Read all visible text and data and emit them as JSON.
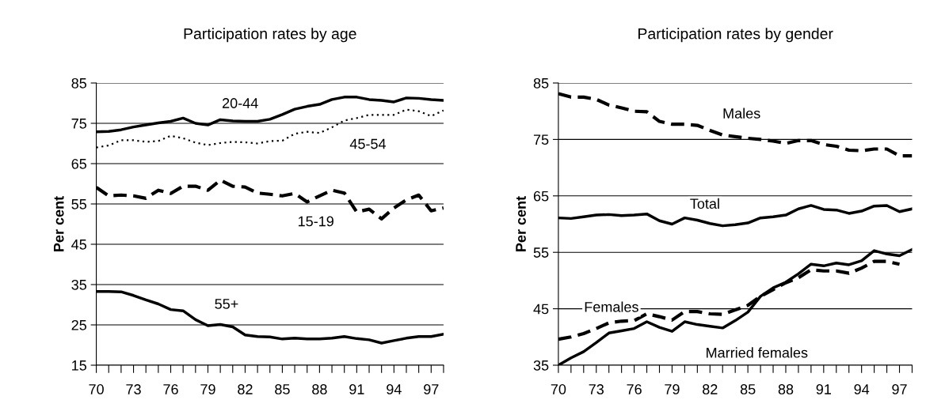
{
  "chart_data": [
    {
      "type": "line",
      "title": "Participation rates by age",
      "ylabel": "Per cent",
      "x": [
        70,
        71,
        72,
        73,
        74,
        75,
        76,
        77,
        78,
        79,
        80,
        81,
        82,
        83,
        84,
        85,
        86,
        87,
        88,
        89,
        90,
        91,
        92,
        93,
        94,
        95,
        96,
        97,
        98
      ],
      "xlim": [
        70,
        98
      ],
      "ylim": [
        15,
        85
      ],
      "yticks": [
        15,
        25,
        35,
        45,
        55,
        65,
        75,
        85
      ],
      "xticks": [
        70,
        {
          "value": 71,
          "label": null
        },
        {
          "value": 72,
          "label": null
        },
        73,
        {
          "value": 74,
          "label": null
        },
        {
          "value": 75,
          "label": null
        },
        76,
        {
          "value": 77,
          "label": null
        },
        {
          "value": 78,
          "label": null
        },
        79,
        {
          "value": 80,
          "label": null
        },
        {
          "value": 81,
          "label": null
        },
        82,
        {
          "value": 83,
          "label": null
        },
        {
          "value": 84,
          "label": null
        },
        85,
        {
          "value": 86,
          "label": null
        },
        {
          "value": 87,
          "label": null
        },
        88,
        {
          "value": 89,
          "label": null
        },
        {
          "value": 90,
          "label": null
        },
        91,
        {
          "value": 92,
          "label": null
        },
        {
          "value": 93,
          "label": null
        },
        94,
        {
          "value": 95,
          "label": null
        },
        {
          "value": 96,
          "label": null
        },
        97,
        {
          "value": 98,
          "label": null
        }
      ],
      "grid": "y",
      "legend": false,
      "marker": "none",
      "series": [
        {
          "name": "20-44",
          "color": "#000000",
          "line_style": "solid",
          "values": [
            72.9,
            73.0,
            73.4,
            74.1,
            74.6,
            75.1,
            75.5,
            76.3,
            75.0,
            74.6,
            75.9,
            75.6,
            75.5,
            75.5,
            76.0,
            77.2,
            78.5,
            79.2,
            79.7,
            80.9,
            81.5,
            81.5,
            80.9,
            80.7,
            80.3,
            81.3,
            81.2,
            80.9,
            80.7
          ]
        },
        {
          "name": "45-54",
          "color": "#000000",
          "line_style": "dotted",
          "values": [
            69.0,
            69.5,
            70.8,
            70.8,
            70.4,
            70.6,
            71.9,
            71.3,
            70.2,
            69.6,
            70.1,
            70.4,
            70.3,
            70.0,
            70.6,
            70.7,
            72.4,
            72.9,
            72.6,
            74.0,
            75.7,
            76.3,
            77.1,
            77.1,
            77.1,
            78.4,
            78.0,
            76.8,
            78.2
          ]
        },
        {
          "name": "15-19",
          "color": "#000000",
          "line_style": "dashed",
          "values": [
            59.1,
            57.0,
            57.2,
            57.0,
            56.4,
            58.4,
            57.6,
            59.4,
            59.4,
            58.4,
            60.9,
            59.4,
            59.2,
            57.7,
            57.4,
            57.0,
            57.6,
            55.5,
            57.0,
            58.4,
            57.7,
            53.0,
            53.7,
            51.3,
            54.0,
            56.0,
            57.2,
            53.3,
            54.0
          ]
        },
        {
          "name": "55+",
          "color": "#000000",
          "line_style": "solid",
          "values": [
            33.3,
            33.3,
            33.2,
            32.3,
            31.2,
            30.2,
            28.8,
            28.5,
            26.3,
            24.8,
            25.1,
            24.5,
            22.5,
            22.1,
            22.0,
            21.5,
            21.7,
            21.5,
            21.5,
            21.7,
            22.1,
            21.6,
            21.3,
            20.5,
            21.1,
            21.7,
            22.1,
            22.1,
            22.7
          ]
        }
      ]
    },
    {
      "type": "line",
      "title": "Participation rates by gender",
      "ylabel": "Per cent",
      "x": [
        70,
        71,
        72,
        73,
        74,
        75,
        76,
        77,
        78,
        79,
        80,
        81,
        82,
        83,
        84,
        85,
        86,
        87,
        88,
        89,
        90,
        91,
        92,
        93,
        94,
        95,
        96,
        97,
        98
      ],
      "xlim": [
        70,
        98
      ],
      "ylim": [
        35,
        85
      ],
      "yticks": [
        35,
        45,
        55,
        65,
        75,
        85
      ],
      "xticks": [
        70,
        {
          "value": 71,
          "label": null
        },
        {
          "value": 72,
          "label": null
        },
        73,
        {
          "value": 74,
          "label": null
        },
        {
          "value": 75,
          "label": null
        },
        76,
        {
          "value": 77,
          "label": null
        },
        {
          "value": 78,
          "label": null
        },
        79,
        {
          "value": 80,
          "label": null
        },
        {
          "value": 81,
          "label": null
        },
        82,
        {
          "value": 83,
          "label": null
        },
        {
          "value": 84,
          "label": null
        },
        85,
        {
          "value": 86,
          "label": null
        },
        {
          "value": 87,
          "label": null
        },
        88,
        {
          "value": 89,
          "label": null
        },
        {
          "value": 90,
          "label": null
        },
        91,
        {
          "value": 92,
          "label": null
        },
        {
          "value": 93,
          "label": null
        },
        94,
        {
          "value": 95,
          "label": null
        },
        {
          "value": 96,
          "label": null
        },
        97,
        {
          "value": 98,
          "label": null
        }
      ],
      "grid": "y",
      "legend": false,
      "marker": "none",
      "series": [
        {
          "name": "Males",
          "color": "#000000",
          "line_style": "dashed",
          "values": [
            83.1,
            82.5,
            82.5,
            82.1,
            81.1,
            80.6,
            80.0,
            79.9,
            78.2,
            77.7,
            77.7,
            77.5,
            76.6,
            75.8,
            75.5,
            75.2,
            75.0,
            74.7,
            74.3,
            74.8,
            74.8,
            74.1,
            73.8,
            73.1,
            73.0,
            73.3,
            73.3,
            72.1,
            72.1
          ]
        },
        {
          "name": "Total",
          "color": "#000000",
          "line_style": "solid",
          "values": [
            61.1,
            61.0,
            61.3,
            61.6,
            61.7,
            61.5,
            61.6,
            61.8,
            60.6,
            60.0,
            61.1,
            60.7,
            60.1,
            59.7,
            59.9,
            60.2,
            61.1,
            61.3,
            61.6,
            62.7,
            63.3,
            62.6,
            62.5,
            61.9,
            62.3,
            63.2,
            63.3,
            62.2,
            62.7
          ]
        },
        {
          "name": "Females",
          "color": "#000000",
          "line_style": "dashed",
          "values": [
            39.6,
            40.0,
            40.6,
            41.5,
            42.5,
            42.8,
            42.9,
            44.1,
            43.6,
            43.0,
            44.5,
            44.5,
            44.1,
            44.0,
            44.8,
            45.6,
            47.2,
            48.4,
            49.6,
            50.5,
            51.9,
            51.7,
            51.7,
            51.3,
            52.2,
            53.4,
            53.4,
            52.9,
            null
          ]
        },
        {
          "name": "Married females",
          "color": "#000000",
          "line_style": "solid",
          "values": [
            35.0,
            36.3,
            37.4,
            39.0,
            40.7,
            41.1,
            41.5,
            42.7,
            41.7,
            41.0,
            42.7,
            42.2,
            41.9,
            41.6,
            42.9,
            44.4,
            47.2,
            48.7,
            49.7,
            51.2,
            52.9,
            52.6,
            53.1,
            52.8,
            53.5,
            55.3,
            54.7,
            54.4,
            55.5
          ]
        }
      ]
    }
  ]
}
